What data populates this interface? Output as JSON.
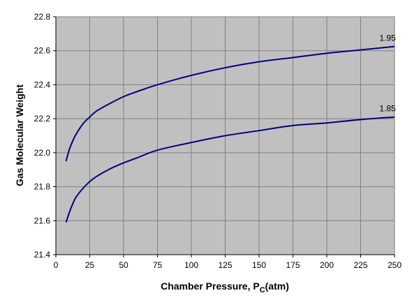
{
  "chart_data": {
    "type": "line",
    "title": "",
    "xlabel": "Chamber Pressure, P",
    "xlabel_sub": "C",
    "xlabel_unit": "(atm)",
    "ylabel": "Gas Molecular Weight",
    "xlim": [
      0,
      250
    ],
    "ylim": [
      21.4,
      22.8
    ],
    "xticks": [
      "0",
      "25",
      "50",
      "75",
      "100",
      "125",
      "150",
      "175",
      "200",
      "225",
      "250"
    ],
    "yticks": [
      "21.4",
      "21.6",
      "21.8",
      "22.0",
      "22.2",
      "22.4",
      "22.6",
      "22.8"
    ],
    "grid": true,
    "plot_background": "#c0c0c0",
    "line_color": "#000080",
    "series": [
      {
        "name": "1.95",
        "x": [
          7.5,
          10,
          12.5,
          15,
          20,
          25,
          30,
          40,
          50,
          60,
          75,
          100,
          125,
          150,
          175,
          200,
          225,
          250
        ],
        "y": [
          21.95,
          22.02,
          22.07,
          22.11,
          22.17,
          22.21,
          22.245,
          22.29,
          22.33,
          22.36,
          22.4,
          22.455,
          22.5,
          22.535,
          22.56,
          22.585,
          22.605,
          22.625
        ]
      },
      {
        "name": "1.85",
        "x": [
          7.5,
          10,
          12.5,
          15,
          20,
          25,
          30,
          40,
          50,
          60,
          75,
          100,
          125,
          150,
          175,
          200,
          225,
          250
        ],
        "y": [
          21.59,
          21.65,
          21.7,
          21.74,
          21.79,
          21.83,
          21.86,
          21.905,
          21.94,
          21.97,
          22.015,
          22.06,
          22.1,
          22.13,
          22.16,
          22.175,
          22.195,
          22.21
        ]
      }
    ]
  }
}
